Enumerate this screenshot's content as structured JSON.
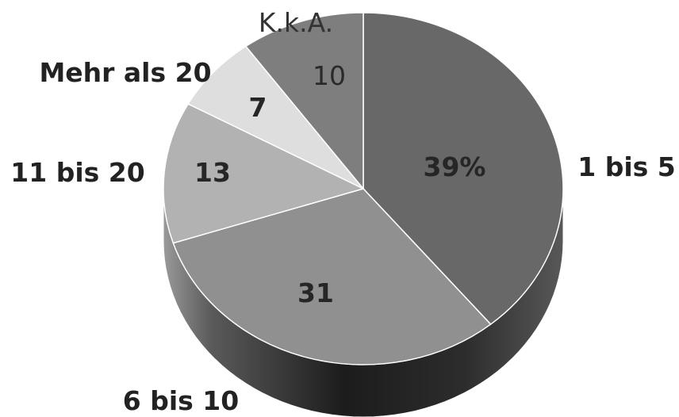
{
  "chart_data": {
    "type": "pie",
    "style": "3d",
    "slices": [
      {
        "label": "1 bis 5",
        "value": 39,
        "value_label": "39%",
        "color": "#686868"
      },
      {
        "label": "6 bis 10",
        "value": 31,
        "value_label": "31",
        "color": "#909090"
      },
      {
        "label": "11 bis 20",
        "value": 13,
        "value_label": "13",
        "color": "#b2b2b2"
      },
      {
        "label": "Mehr als 20",
        "value": 7,
        "value_label": "7",
        "color": "#dedede"
      },
      {
        "label": "K.k.A.",
        "value": 10,
        "value_label": "10",
        "color": "#7e7e7e"
      }
    ],
    "legend": "none"
  }
}
